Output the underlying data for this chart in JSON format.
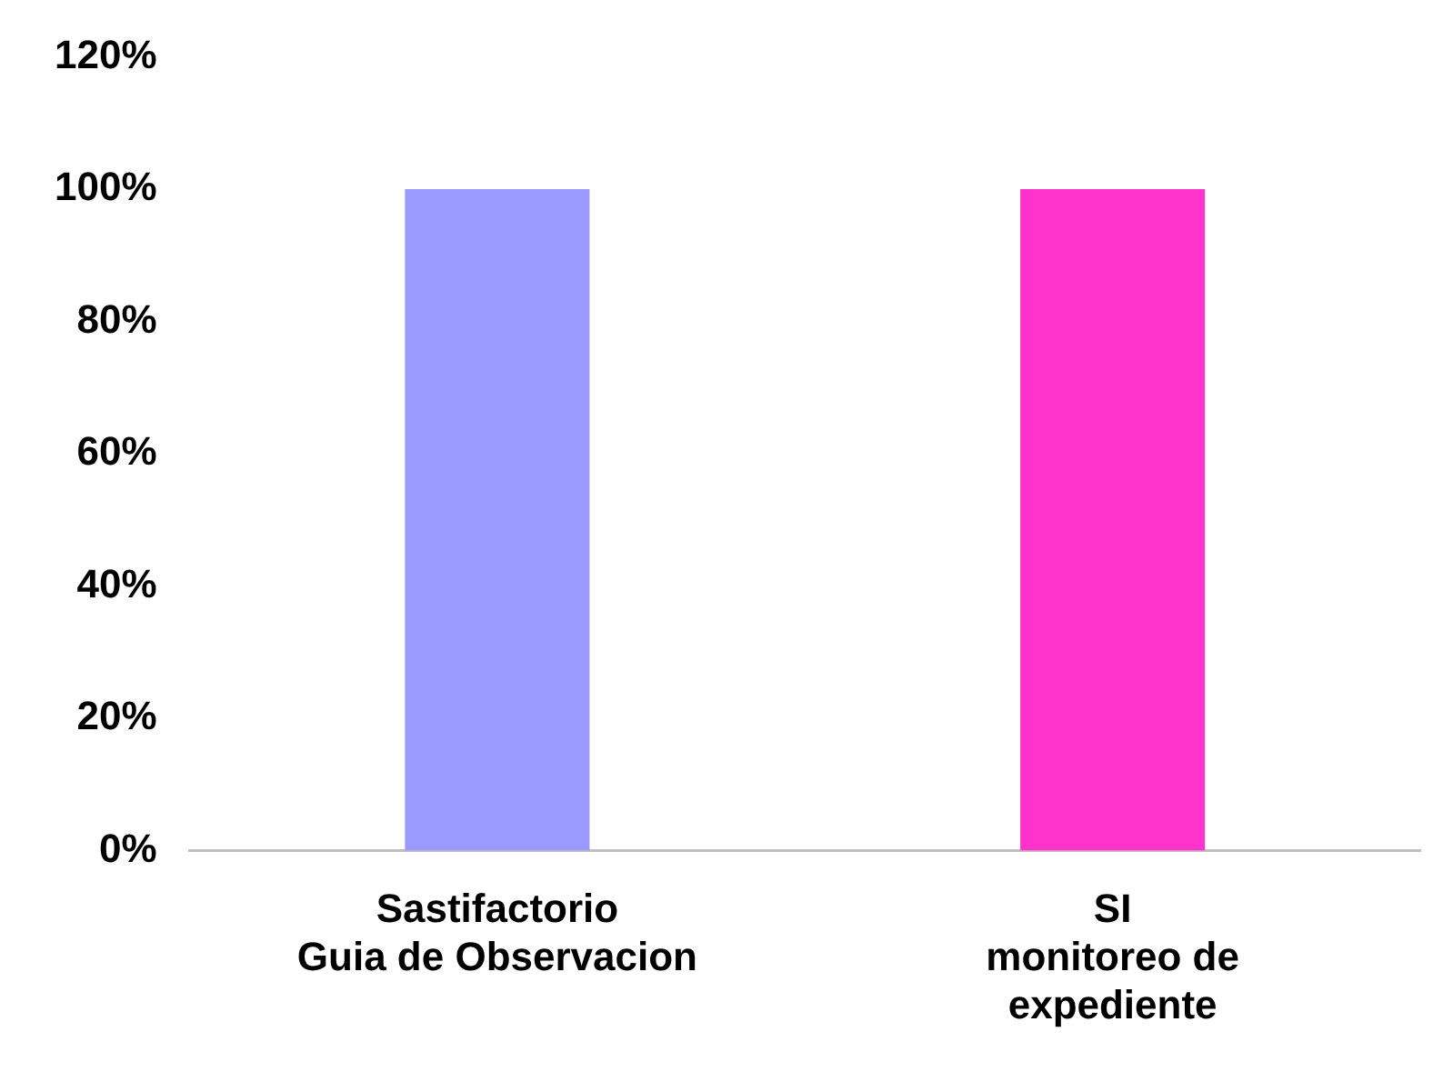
{
  "chart_data": {
    "type": "bar",
    "categories": [
      "Sastifactorio\nGuia de Observacion",
      "SI\nmonitoreo de\nexpediente"
    ],
    "values": [
      100,
      100
    ],
    "colors": [
      "#9999ff",
      "#ff33cc"
    ],
    "ylim": [
      0,
      120
    ],
    "yticks": [
      {
        "value": 0,
        "label": "0%"
      },
      {
        "value": 20,
        "label": "20%"
      },
      {
        "value": 40,
        "label": "40%"
      },
      {
        "value": 60,
        "label": "60%"
      },
      {
        "value": 80,
        "label": "80%"
      },
      {
        "value": 100,
        "label": "100%"
      },
      {
        "value": 120,
        "label": "120%"
      }
    ],
    "grid": false,
    "legend": false
  }
}
